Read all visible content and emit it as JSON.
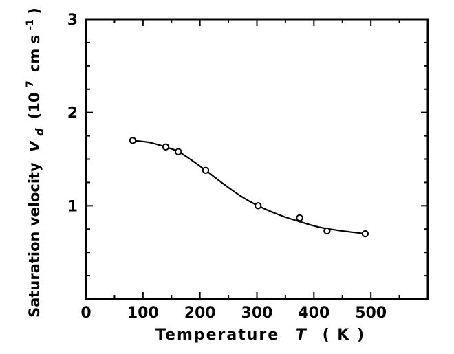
{
  "chart_data": {
    "type": "scatter",
    "title": "",
    "xlabel": "Temperature",
    "xlabel_symbol": "T",
    "xlabel_unit": "( K )",
    "ylabel": "Saturation velocity",
    "ylabel_symbol": "v",
    "ylabel_subscript": "d",
    "ylabel_unit_open": "(10",
    "ylabel_unit_exp": "7",
    "ylabel_unit_mid": "cm s",
    "ylabel_unit_exp2": "-1",
    "ylabel_unit_close": ")",
    "xlim": [
      0,
      600
    ],
    "ylim": [
      0,
      3
    ],
    "xticks": [
      {
        "value": 0,
        "label": "0"
      },
      {
        "value": 100,
        "label": "100"
      },
      {
        "value": 200,
        "label": "200"
      },
      {
        "value": 300,
        "label": "300"
      },
      {
        "value": 400,
        "label": "400"
      },
      {
        "value": 500,
        "label": "500"
      }
    ],
    "yticks": [
      {
        "value": 1,
        "label": "1"
      },
      {
        "value": 2,
        "label": "2"
      },
      {
        "value": 3,
        "label": "3"
      }
    ],
    "x_minor_step": 50,
    "y_minor_step": 0.25,
    "grid": false,
    "series": [
      {
        "marker": "open-circle",
        "color": "#000000",
        "x": [
          82,
          140,
          162,
          210,
          302,
          375,
          423,
          490
        ],
        "y": [
          1.7,
          1.63,
          1.58,
          1.38,
          1.0,
          0.87,
          0.73,
          0.7
        ]
      }
    ],
    "fit_curve": {
      "style": "solid",
      "color": "#000000",
      "x": [
        82,
        110,
        140,
        162,
        185,
        210,
        240,
        270,
        302,
        340,
        375,
        410,
        450,
        490
      ],
      "y": [
        1.7,
        1.68,
        1.63,
        1.58,
        1.49,
        1.38,
        1.24,
        1.11,
        1.0,
        0.9,
        0.83,
        0.77,
        0.73,
        0.7
      ]
    }
  }
}
